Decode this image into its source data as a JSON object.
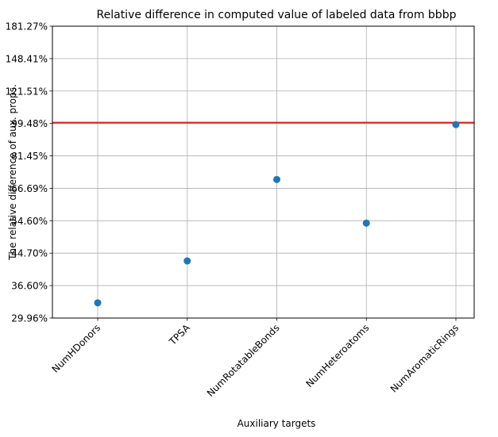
{
  "chart_data": {
    "type": "scatter",
    "title": "Relative difference in computed value of labeled data from bbbp",
    "xlabel": "Auxiliary targets",
    "ylabel": "The relative difference of aux. props.",
    "y_scale": "log",
    "ylim": [
      29.96,
      181.27
    ],
    "yticks": [
      {
        "value": 29.96,
        "label": "29.96%"
      },
      {
        "value": 36.6,
        "label": "36.60%"
      },
      {
        "value": 44.7,
        "label": "44.70%"
      },
      {
        "value": 54.6,
        "label": "54.60%"
      },
      {
        "value": 66.69,
        "label": "66.69%"
      },
      {
        "value": 81.45,
        "label": "81.45%"
      },
      {
        "value": 99.48,
        "label": "99.48%"
      },
      {
        "value": 121.51,
        "label": "121.51%"
      },
      {
        "value": 148.41,
        "label": "148.41%"
      },
      {
        "value": 181.27,
        "label": "181.27%"
      }
    ],
    "categories": [
      "NumHDonors",
      "TPSA",
      "NumRotatableBonds",
      "NumHeteroatoms",
      "NumAromaticRings"
    ],
    "values": [
      32.9,
      42.6,
      70.4,
      53.8,
      98.8
    ],
    "reference_line": {
      "value": 100,
      "color": "#e31a1c"
    },
    "point_color": "#1f77b4",
    "grid": true,
    "legend": "none"
  }
}
